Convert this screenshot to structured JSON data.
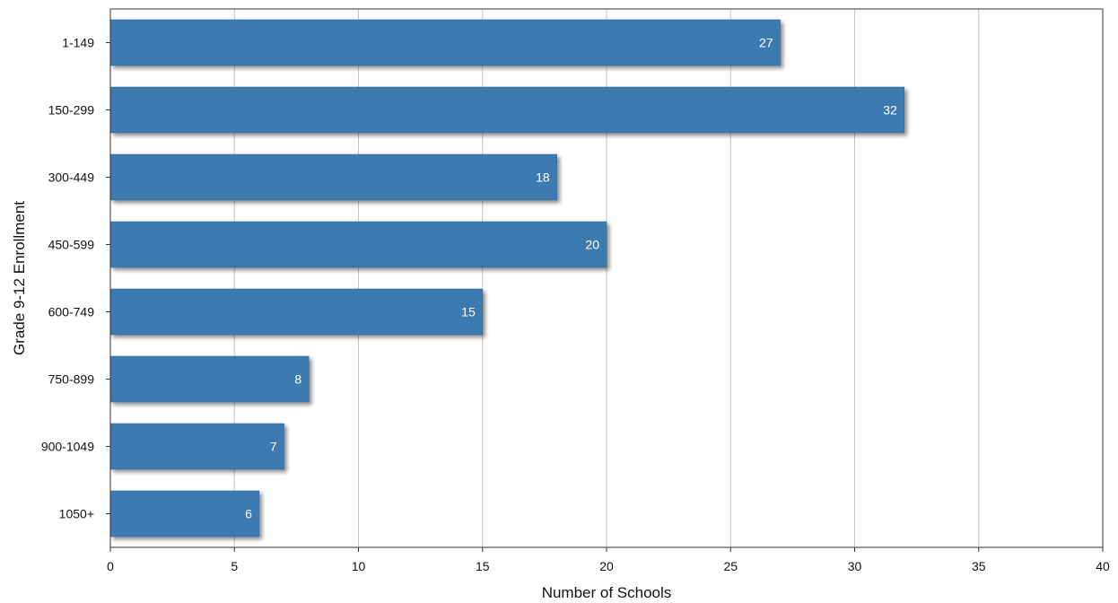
{
  "chart_data": {
    "type": "bar",
    "orientation": "horizontal",
    "categories": [
      "1-149",
      "150-299",
      "300-449",
      "450-599",
      "600-749",
      "750-899",
      "900-1049",
      "1050+"
    ],
    "values": [
      27,
      32,
      18,
      20,
      15,
      8,
      7,
      6
    ],
    "xlabel": "Number of Schools",
    "ylabel": "Grade 9-12 Enrollment",
    "xlim": [
      0,
      40
    ],
    "xticks": [
      0,
      5,
      10,
      15,
      20,
      25,
      30,
      35,
      40
    ],
    "grid": "vertical",
    "data_labels": true,
    "legend": "none",
    "colors": {
      "bar": "#3d7ab0",
      "bar_edge": "#2f6494",
      "grid": "#c4c4c4",
      "frame": "#333333"
    }
  }
}
